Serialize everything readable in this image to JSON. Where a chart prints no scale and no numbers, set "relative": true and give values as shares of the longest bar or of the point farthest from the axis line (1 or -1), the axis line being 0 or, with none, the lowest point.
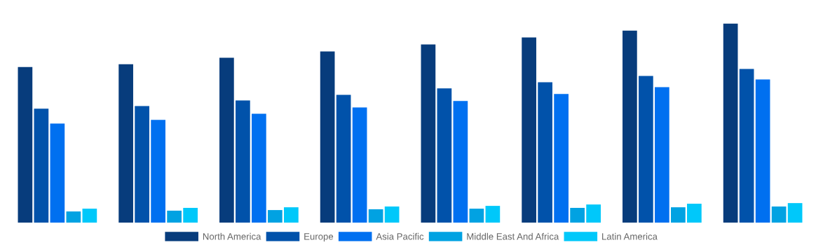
{
  "chart_data": {
    "type": "bar",
    "relative": true,
    "categories": [
      null,
      null,
      null,
      null,
      null,
      null,
      null,
      null
    ],
    "series": [
      {
        "name": "North America",
        "color": "#073c7c",
        "values": [
          0.782,
          0.796,
          0.828,
          0.86,
          0.895,
          0.93,
          0.965,
          1
        ]
      },
      {
        "name": "Europe",
        "color": "#0152aa",
        "values": [
          0.572,
          0.586,
          0.614,
          0.642,
          0.674,
          0.705,
          0.737,
          0.772
        ]
      },
      {
        "name": "Asia Pacific",
        "color": "#0070f0",
        "values": [
          0.498,
          0.516,
          0.547,
          0.579,
          0.611,
          0.646,
          0.681,
          0.719
        ]
      },
      {
        "name": "Middle East And Africa",
        "color": "#01a2e2",
        "values": [
          0.056,
          0.06,
          0.063,
          0.067,
          0.07,
          0.074,
          0.077,
          0.081
        ]
      },
      {
        "name": "Latin America",
        "color": "#00c8fa",
        "values": [
          0.07,
          0.074,
          0.077,
          0.081,
          0.084,
          0.091,
          0.095,
          0.098
        ]
      }
    ],
    "legend": "bottom",
    "grid": false
  }
}
